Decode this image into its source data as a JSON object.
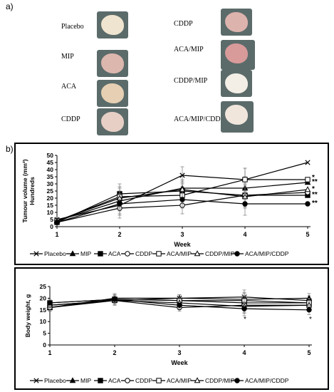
{
  "panel_a_label": "a)",
  "panel_b_label": "b)",
  "tumours": [
    {
      "label": "Placebo",
      "color": "#efe4cf"
    },
    {
      "label": "MIP",
      "color": "#dcb7ae"
    },
    {
      "label": "ACA",
      "color": "#e6cfb2"
    },
    {
      "label": "CDDP",
      "color": "#e7cfc5"
    },
    {
      "label": "CDDP",
      "color": "#ddb3ad"
    },
    {
      "label": "ACA/MIP",
      "color": "#d99a9a"
    },
    {
      "label": "CDDP/MIP",
      "color": "#f3efe6"
    },
    {
      "label": "ACA/MIP/CDDP",
      "color": "#f1e6dc"
    }
  ],
  "chart_data": [
    {
      "type": "line",
      "ylabel": "Tumour volume (mm³) Hundreds",
      "xlabel": "Week",
      "x": [
        1,
        2,
        3,
        4,
        5
      ],
      "ylim": [
        0,
        50
      ],
      "yticks": [
        0,
        5,
        10,
        15,
        20,
        25,
        30,
        35,
        40,
        45,
        50
      ],
      "series": [
        {
          "name": "Placebo",
          "marker": "x",
          "values": [
            5,
            15,
            36,
            33,
            45
          ]
        },
        {
          "name": "MIP",
          "marker": "triangle-filled",
          "values": [
            4,
            18,
            27,
            27,
            31
          ]
        },
        {
          "name": "ACA",
          "marker": "square-filled",
          "values": [
            3,
            23,
            25,
            22,
            22
          ]
        },
        {
          "name": "CDDP",
          "marker": "circle-open",
          "values": [
            3,
            13,
            15,
            22,
            24
          ]
        },
        {
          "name": "ACA/MIP",
          "marker": "square-open",
          "values": [
            4,
            21,
            22,
            33,
            33
          ]
        },
        {
          "name": "CDDP/MIP",
          "marker": "triangle-open",
          "values": [
            4,
            20,
            26,
            21,
            26
          ]
        },
        {
          "name": "ACA/MIP/CDDP",
          "marker": "circle-filled",
          "values": [
            3,
            16,
            19,
            16,
            16
          ]
        }
      ],
      "annotations": [
        "*",
        "**",
        "*",
        "**",
        "**"
      ]
    },
    {
      "type": "line",
      "ylabel": "Body weight, g",
      "xlabel": "Week",
      "x": [
        1,
        2,
        3,
        4,
        5
      ],
      "ylim": [
        0,
        25
      ],
      "yticks": [
        0,
        5,
        10,
        15,
        20,
        25
      ],
      "series": [
        {
          "name": "Placebo",
          "marker": "x",
          "values": [
            17,
            19,
            20,
            20.5,
            19
          ]
        },
        {
          "name": "MIP",
          "marker": "triangle-filled",
          "values": [
            16,
            20,
            20,
            19.5,
            20
          ]
        },
        {
          "name": "ACA",
          "marker": "square-filled",
          "values": [
            16,
            19.5,
            19,
            18,
            18
          ]
        },
        {
          "name": "CDDP",
          "marker": "circle-open",
          "values": [
            16,
            19,
            16,
            17,
            17
          ]
        },
        {
          "name": "ACA/MIP",
          "marker": "square-open",
          "values": [
            18,
            19.5,
            19,
            19,
            18
          ]
        },
        {
          "name": "CDDP/MIP",
          "marker": "triangle-open",
          "values": [
            17,
            19,
            18,
            16.5,
            17
          ]
        },
        {
          "name": "ACA/MIP/CDDP",
          "marker": "circle-filled",
          "values": [
            18,
            19.5,
            17,
            15.5,
            15
          ]
        }
      ],
      "annotations": [
        "*",
        "*"
      ]
    }
  ]
}
